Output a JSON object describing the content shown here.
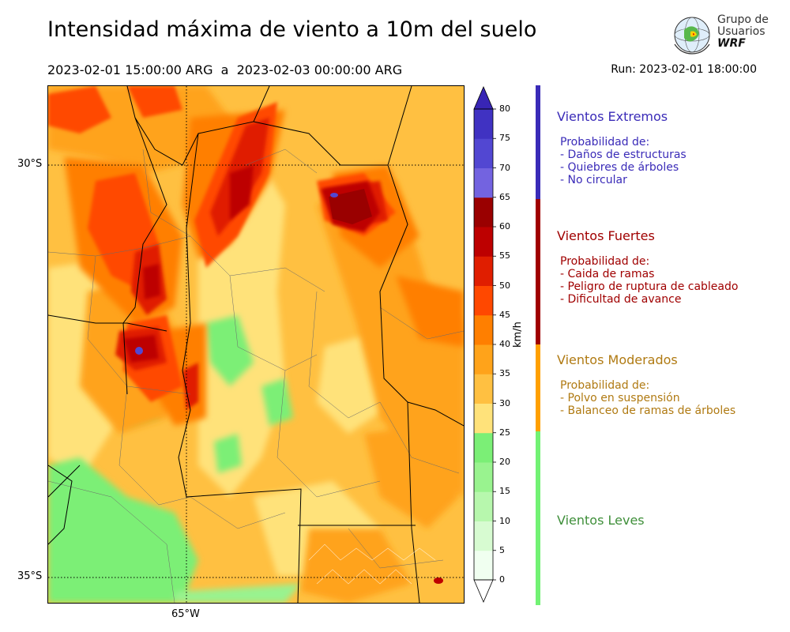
{
  "title": "Intensidad máxima de viento a 10m del suelo",
  "subtitle": "2023-02-01 15:00:00 ARG  a  2023-02-03 00:00:00 ARG",
  "run": "Run: 2023-02-01 18:00:00",
  "logo": {
    "line1": "Grupo de",
    "line2": "Usuarios",
    "line3": "WRF"
  },
  "map": {
    "lat_labels": [
      "30°S",
      "35°S"
    ],
    "lon_labels": [
      "65°W"
    ]
  },
  "colorbar": {
    "unit": "km/h",
    "ticks": [
      "0",
      "5",
      "10",
      "15",
      "20",
      "25",
      "30",
      "35",
      "40",
      "45",
      "50",
      "55",
      "60",
      "65",
      "70",
      "75",
      "80"
    ],
    "colors": [
      "#f0fff0",
      "#d7fbd1",
      "#b7f7ad",
      "#99f38f",
      "#7bef76",
      "#ffe27a",
      "#ffc041",
      "#ffa31a",
      "#ff7f00",
      "#ff4800",
      "#e01e00",
      "#bd0000",
      "#9a0000",
      "#7363e0",
      "#5247d2",
      "#4032c2"
    ],
    "top_color": "#3825b5"
  },
  "categories": [
    {
      "title": "Vientos Extremos",
      "color": "#3a2bb8",
      "desc_header": "Probabilidad de:",
      "items": [
        "- Daños de estructuras",
        "- Quiebres de árboles",
        "- No circular"
      ]
    },
    {
      "title": "Vientos Fuertes",
      "color": "#a00000",
      "desc_header": "Probabilidad de:",
      "items": [
        "- Caida de ramas",
        "- Peligro de ruptura de cableado",
        "- Dificultad de avance"
      ]
    },
    {
      "title": "Vientos Moderados",
      "color": "#b07a12",
      "bar_color": "#ffa000",
      "desc_header": "Probabilidad de:",
      "items": [
        "- Polvo en suspensión",
        "- Balanceo de ramas de árboles"
      ]
    },
    {
      "title": "Vientos Leves",
      "color": "#3f8f3a",
      "bar_color": "#72f274",
      "desc_header": "",
      "items": []
    }
  ]
}
